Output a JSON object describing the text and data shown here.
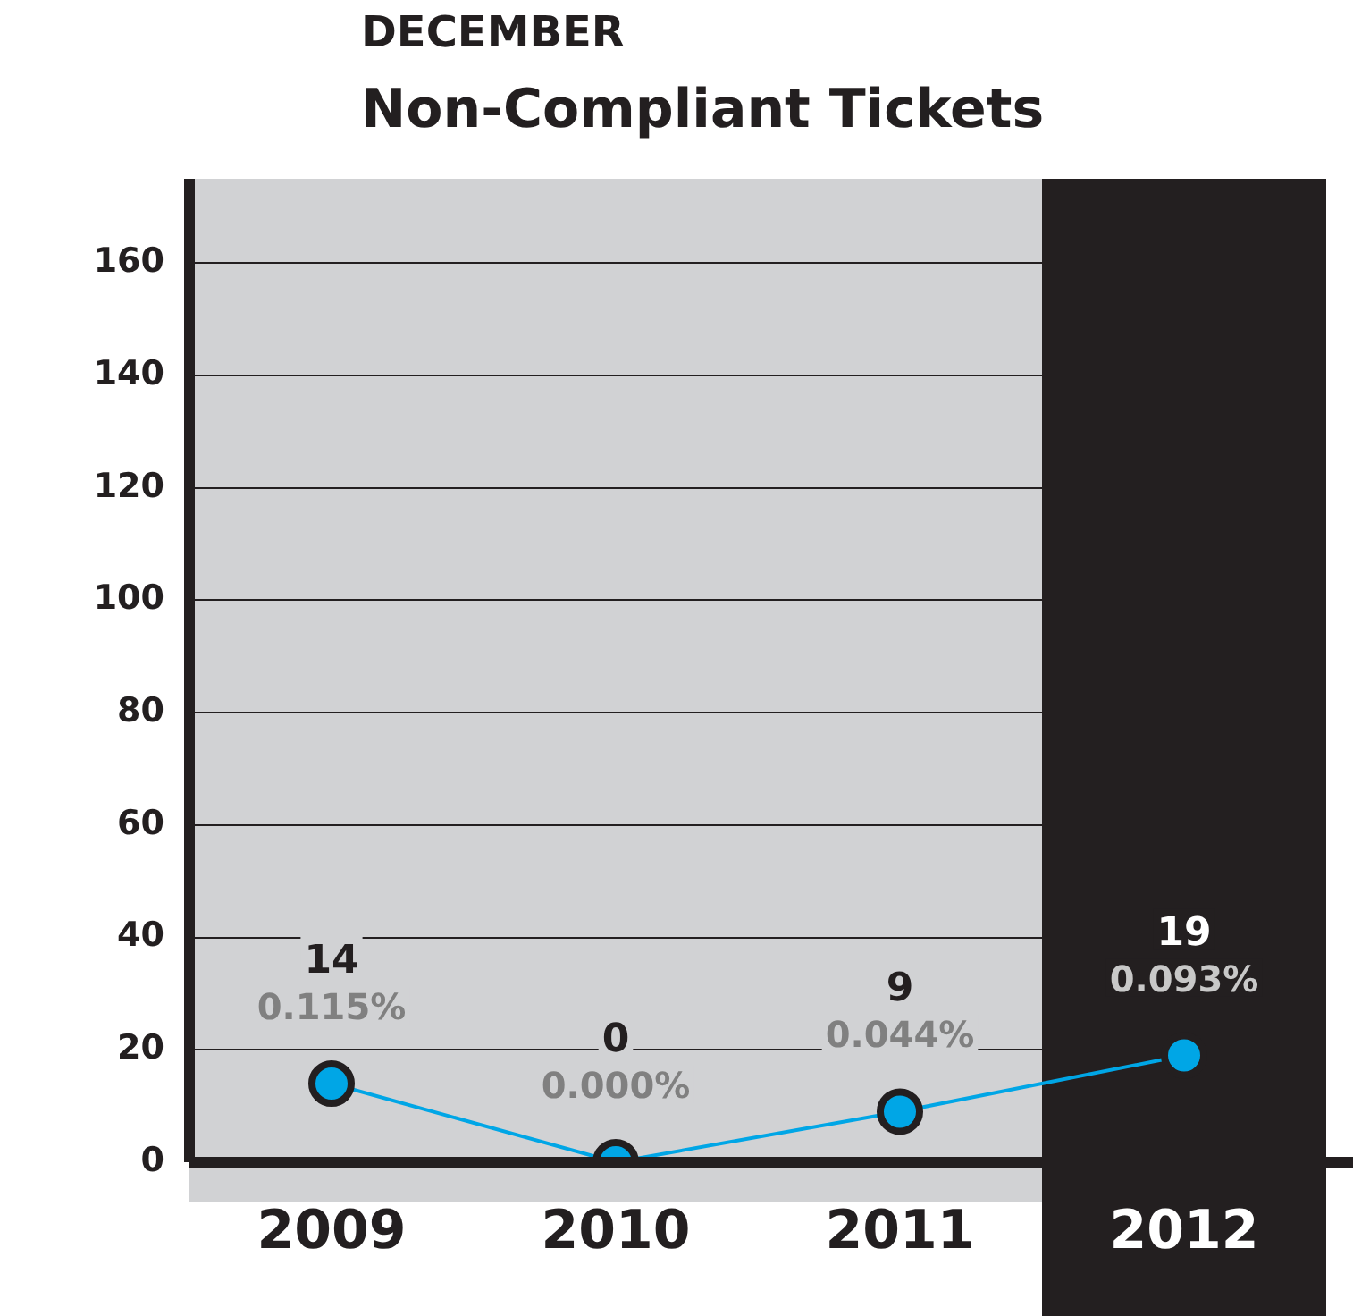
{
  "chart_data": {
    "type": "line",
    "title": "Non-Compliant Tickets",
    "subtitle": "DECEMBER",
    "categories": [
      "2009",
      "2010",
      "2011",
      "2012"
    ],
    "series": [
      {
        "color": "#00a6e6",
        "values": [
          14,
          0,
          9,
          19
        ]
      }
    ],
    "data_labels": true,
    "annotations": [
      {
        "text": "0.115%",
        "x": "2009",
        "y": 14
      },
      {
        "text": "0.000%",
        "x": "2010",
        "y": 0
      },
      {
        "text": "0.044%",
        "x": "2011",
        "y": 9
      },
      {
        "text": "0.093%",
        "x": "2012",
        "y": 19
      }
    ],
    "bands": [
      {
        "axis": "x",
        "from": "2012",
        "to": "2012",
        "color": "#231f20"
      }
    ],
    "ylim": [
      0,
      175
    ],
    "yticks": [
      0,
      20,
      40,
      60,
      80,
      100,
      120,
      140,
      160
    ],
    "grid": "y",
    "legend": false,
    "marker": "circle",
    "line_style": "solid"
  }
}
